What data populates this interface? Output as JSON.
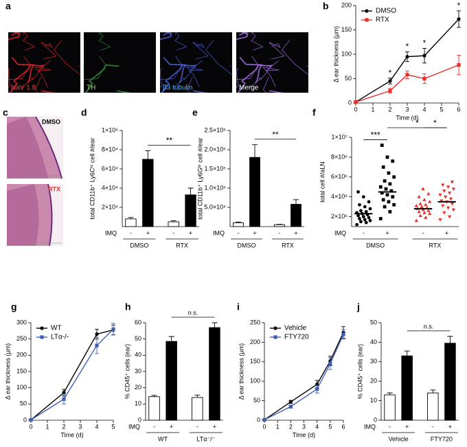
{
  "images": [
    {
      "label": "a",
      "captions": [
        "NaV 1.8",
        "TH",
        "β3 tubulin",
        "Merge"
      ]
    },
    {
      "label": "c",
      "captions": [
        "DMSO",
        "RTX"
      ]
    }
  ],
  "chart_data": [
    {
      "type": "line",
      "label": "b",
      "xlabel": "Time (d)",
      "ylabel": "Δ ear thickness (μm)",
      "x": [
        0,
        2,
        3,
        4,
        6
      ],
      "xlim": [
        0,
        6
      ],
      "xticks": [
        0,
        1,
        2,
        3,
        4,
        5,
        6
      ],
      "ylim": [
        0,
        200
      ],
      "yticks": [
        0,
        50,
        100,
        150,
        200
      ],
      "legend": "upper left",
      "series": [
        {
          "name": "DMSO",
          "color": "#000000",
          "marker": "circle",
          "values": [
            2,
            45,
            95,
            97,
            172
          ],
          "errors": [
            2,
            6,
            10,
            15,
            17
          ]
        },
        {
          "name": "RTX",
          "color": "#e8302a",
          "marker": "square",
          "values": [
            2,
            25,
            58,
            50,
            78
          ],
          "errors": [
            2,
            5,
            8,
            10,
            20
          ]
        }
      ],
      "significance": [
        {
          "x": 2,
          "label": "*"
        },
        {
          "x": 3,
          "label": "*"
        },
        {
          "x": 4,
          "label": "*"
        },
        {
          "x": 6,
          "label": "*"
        }
      ]
    },
    {
      "type": "bar",
      "label": "d",
      "ylabel": "total CD11b⁺ Ly6Cʰⁱ cell #/ear",
      "categories": [
        "-",
        "+",
        "-",
        "+"
      ],
      "group_label": "IMQ",
      "groups": [
        "DMSO",
        "RTX"
      ],
      "values": [
        8000,
        70000,
        5000,
        33000
      ],
      "errors": [
        1500,
        9000,
        1000,
        7000
      ],
      "colors": [
        "#ffffff",
        "#000000",
        "#ffffff",
        "#000000"
      ],
      "ylim": [
        0,
        100000
      ],
      "yticks": [
        {
          "value": 20000,
          "label": "2×10⁴"
        },
        {
          "value": 40000,
          "label": "4×10⁴"
        },
        {
          "value": 60000,
          "label": "6×10⁴"
        },
        {
          "value": 80000,
          "label": "8×10⁴"
        },
        {
          "value": 100000,
          "label": "1×10⁵"
        }
      ],
      "significance": [
        {
          "from": 1,
          "to": 3,
          "label": "**"
        }
      ]
    },
    {
      "type": "bar",
      "label": "e",
      "ylabel": "total CD11b⁺ Ly6Gʰⁱ cell #/ear",
      "categories": [
        "-",
        "+",
        "-",
        "+"
      ],
      "group_label": "IMQ",
      "groups": [
        "DMSO",
        "RTX"
      ],
      "values": [
        10000,
        180000,
        5000,
        58000
      ],
      "errors": [
        2000,
        33000,
        1000,
        12000
      ],
      "colors": [
        "#ffffff",
        "#000000",
        "#ffffff",
        "#000000"
      ],
      "ylim": [
        0,
        250000
      ],
      "yticks": [
        {
          "value": 50000,
          "label": "5.0×10⁴"
        },
        {
          "value": 100000,
          "label": "1.0×10⁵"
        },
        {
          "value": 150000,
          "label": "1.5×10⁵"
        },
        {
          "value": 200000,
          "label": "2.0×10⁵"
        },
        {
          "value": 250000,
          "label": "2.5×10⁵"
        }
      ],
      "significance": [
        {
          "from": 1,
          "to": 3,
          "label": "**"
        }
      ]
    },
    {
      "type": "dot",
      "label": "f",
      "ylabel": "total cell #/aLN",
      "categories": [
        "-",
        "+",
        "-",
        "+"
      ],
      "group_label": "IMQ",
      "groups": [
        "DMSO",
        "RTX"
      ],
      "markers": [
        "circle",
        "square",
        "triangle",
        "triangle-down"
      ],
      "colors": [
        "#000000",
        "#000000",
        "#e8302a",
        "#e8302a"
      ],
      "ylim": [
        1000000,
        10000000
      ],
      "yticks": [
        {
          "value": 2000000,
          "label": "2×10⁶"
        },
        {
          "value": 4000000,
          "label": "4×10⁶"
        },
        {
          "value": 6000000,
          "label": "6×10⁶"
        },
        {
          "value": 8000000,
          "label": "8×10⁶"
        },
        {
          "value": 10000000,
          "label": "1×10⁷"
        }
      ],
      "points": [
        [
          1200000.0,
          1400000.0,
          1500000.0,
          1600000.0,
          1700000.0,
          1800000.0,
          1900000.0,
          2000000.0,
          2100000.0,
          2200000.0,
          2300000.0,
          2400000.0,
          2500000.0,
          2600000.0,
          2800000.0,
          3000000.0,
          3200000.0,
          3500000.0,
          4000000.0,
          4500000.0
        ],
        [
          1800000.0,
          2500000.0,
          3000000.0,
          3200000.0,
          3500000.0,
          3700000.0,
          4000000.0,
          4200000.0,
          4400000.0,
          4600000.0,
          4800000.0,
          5000000.0,
          5300000.0,
          5600000.0,
          6000000.0,
          6400000.0,
          7000000.0,
          7600000.0,
          8000000.0,
          9200000.0
        ],
        [
          1600000.0,
          1900000.0,
          2100000.0,
          2300000.0,
          2400000.0,
          2500000.0,
          2600000.0,
          2700000.0,
          2800000.0,
          2900000.0,
          3000000.0,
          3100000.0,
          3200000.0,
          3300000.0,
          3500000.0,
          3700000.0,
          4000000.0,
          4300000.0,
          4800000.0
        ],
        [
          1700000.0,
          2000000.0,
          2400000.0,
          2700000.0,
          2900000.0,
          3100000.0,
          3300000.0,
          3500000.0,
          3600000.0,
          3800000.0,
          4000000.0,
          4200000.0,
          4400000.0,
          4600000.0,
          4800000.0,
          5000000.0,
          5200000.0,
          5500000.0
        ]
      ],
      "means": [
        2300000.0,
        4500000.0,
        2800000.0,
        3500000.0
      ],
      "significance": [
        {
          "from": 0,
          "to": 1,
          "label": "***"
        },
        {
          "from": 1,
          "to": 3,
          "label": "*"
        },
        {
          "from": 2,
          "to": 3,
          "label": "*"
        }
      ]
    },
    {
      "type": "line",
      "label": "g",
      "xlabel": "Time (d)",
      "ylabel": "Δ ear thickness (μm)",
      "x": [
        0,
        2,
        4,
        5
      ],
      "xlim": [
        0,
        5
      ],
      "xticks": [
        0,
        1,
        2,
        3,
        4,
        5
      ],
      "ylim": [
        0,
        300
      ],
      "yticks": [
        0,
        50,
        100,
        150,
        200,
        250,
        300
      ],
      "legend": "upper left",
      "series": [
        {
          "name": "WT",
          "color": "#000000",
          "marker": "circle",
          "values": [
            1,
            85,
            265,
            278
          ],
          "errors": [
            1,
            10,
            15,
            15
          ]
        },
        {
          "name": "LTα-/-",
          "color": "#3f5fb5",
          "marker": "square",
          "values": [
            1,
            65,
            230,
            280
          ],
          "errors": [
            1,
            15,
            25,
            18
          ]
        }
      ]
    },
    {
      "type": "bar",
      "label": "h",
      "ylabel": "% CD45⁺ cells (ear)",
      "categories": [
        "-",
        "+",
        "-",
        "+"
      ],
      "group_label": "IMQ",
      "groups": [
        "WT",
        "LTα⁻/⁻"
      ],
      "values": [
        14.5,
        48.5,
        14,
        57
      ],
      "errors": [
        0.8,
        3,
        1.5,
        3
      ],
      "colors": [
        "#ffffff",
        "#000000",
        "#ffffff",
        "#000000"
      ],
      "ylim": [
        0,
        60
      ],
      "yticks": [
        0,
        10,
        20,
        30,
        40,
        50,
        60
      ],
      "significance": [
        {
          "from": 1,
          "to": 3,
          "label": "n.s."
        }
      ]
    },
    {
      "type": "line",
      "label": "i",
      "xlabel": "Time (d)",
      "ylabel": "Δ ear thickness (μm)",
      "x": [
        0,
        2,
        4,
        5,
        6
      ],
      "xlim": [
        0,
        6
      ],
      "xticks": [
        0,
        1,
        2,
        3,
        4,
        5,
        6
      ],
      "ylim": [
        0,
        250
      ],
      "yticks": [
        0,
        50,
        100,
        150,
        200,
        250
      ],
      "legend": "upper left",
      "series": [
        {
          "name": "Vehicle",
          "color": "#000000",
          "marker": "circle",
          "values": [
            1,
            47,
            92,
            152,
            225
          ],
          "errors": [
            1,
            4,
            10,
            12,
            15
          ]
        },
        {
          "name": "FTY720",
          "color": "#3f5fb5",
          "marker": "square",
          "values": [
            1,
            35,
            80,
            145,
            220
          ],
          "errors": [
            1,
            4,
            10,
            15,
            12
          ]
        }
      ]
    },
    {
      "type": "bar",
      "label": "j",
      "ylabel": "% CD45⁺ cells (ear)",
      "categories": [
        "-",
        "+",
        "-",
        "+"
      ],
      "group_label": "IMQ",
      "groups": [
        "Vehicle",
        "FTY720"
      ],
      "values": [
        13,
        33,
        14,
        39.5
      ],
      "errors": [
        1,
        2.5,
        1.5,
        3.5
      ],
      "colors": [
        "#ffffff",
        "#000000",
        "#ffffff",
        "#000000"
      ],
      "ylim": [
        0,
        50
      ],
      "yticks": [
        0,
        10,
        20,
        30,
        40,
        50
      ],
      "significance": [
        {
          "from": 1,
          "to": 3,
          "label": "n.s."
        }
      ]
    }
  ]
}
